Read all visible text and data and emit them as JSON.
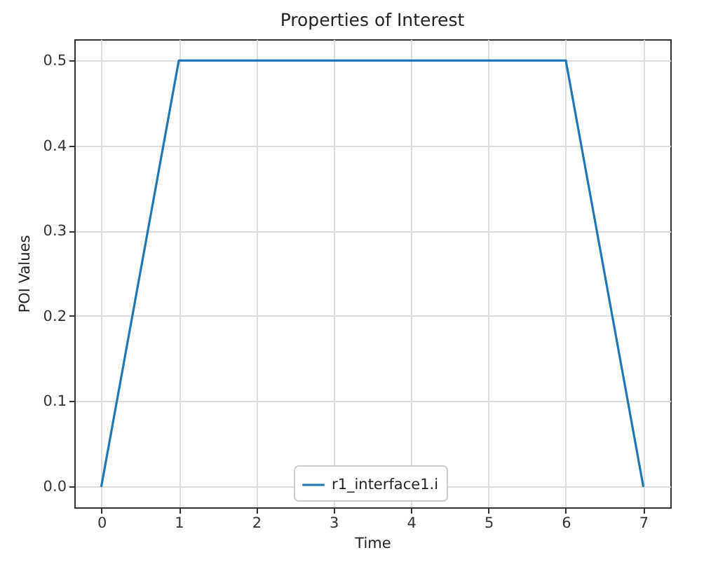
{
  "chart_data": {
    "type": "line",
    "title": "Properties of Interest",
    "xlabel": "Time",
    "ylabel": "POI Values",
    "x": [
      0,
      1,
      6,
      7
    ],
    "series": [
      {
        "name": "r1_interface1.i",
        "color": "#1f77b4",
        "values": [
          0.0,
          0.5,
          0.5,
          0.0
        ]
      }
    ],
    "xlim": [
      -0.35,
      7.35
    ],
    "xticks": [
      0,
      1,
      2,
      3,
      4,
      5,
      6,
      7
    ],
    "ylim": [
      -0.025,
      0.525
    ],
    "yticks": [
      {
        "value": 0,
        "label": "0.0"
      },
      0.1,
      0.2,
      0.3,
      0.4,
      0.5
    ],
    "grid": true,
    "legend": "bottom",
    "line_style": "solid"
  }
}
